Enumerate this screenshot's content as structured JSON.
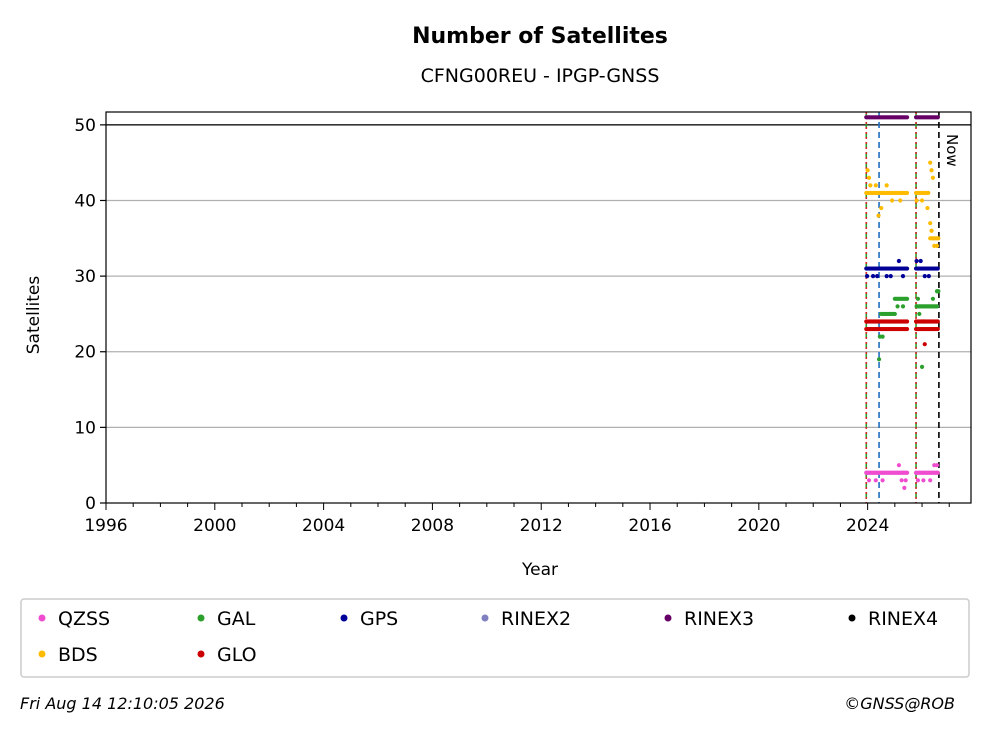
{
  "chart_data": {
    "type": "scatter",
    "title": "Number of Satellites",
    "subtitle": "CFNG00REU - IPGP-GNSS",
    "xlabel": "Year",
    "ylabel": "Satellites",
    "xlim": [
      1996,
      2027.8
    ],
    "ylim": [
      0,
      51.7
    ],
    "xticks": [
      1996,
      2000,
      2004,
      2008,
      2012,
      2016,
      2020,
      2024
    ],
    "xtick_labels": [
      "1996",
      "2000",
      "2004",
      "2008",
      "2012",
      "2016",
      "2020",
      "2024"
    ],
    "yticks": [
      0,
      10,
      20,
      30,
      40,
      50
    ],
    "ytick_labels": [
      "0",
      "10",
      "20",
      "30",
      "40",
      "50"
    ],
    "grid": "horizontal",
    "reference_lines": [
      {
        "x": 2023.95,
        "color": "#2ca02c",
        "style": "dashed"
      },
      {
        "x": 2023.95,
        "color": "#d62728",
        "style": "dotted"
      },
      {
        "x": 2024.42,
        "color": "#1f6fbf",
        "style": "dashed"
      },
      {
        "x": 2025.78,
        "color": "#2ca02c",
        "style": "dashed"
      },
      {
        "x": 2025.78,
        "color": "#d62728",
        "style": "dotted"
      },
      {
        "x": 2026.62,
        "color": "#000000",
        "style": "dashed",
        "label": "Now"
      }
    ],
    "series": [
      {
        "name": "QZSS",
        "color": "#f04cd0",
        "segments": [
          [
            2023.95,
            2025.45,
            4
          ],
          [
            2025.78,
            2026.62,
            4
          ]
        ],
        "outliers": [
          [
            2024.05,
            3
          ],
          [
            2024.3,
            3
          ],
          [
            2024.55,
            3
          ],
          [
            2025.15,
            5
          ],
          [
            2025.25,
            3
          ],
          [
            2025.35,
            2
          ],
          [
            2025.4,
            3
          ],
          [
            2025.85,
            3
          ],
          [
            2026.05,
            3
          ],
          [
            2026.3,
            3
          ],
          [
            2026.45,
            5
          ],
          [
            2026.55,
            5
          ]
        ]
      },
      {
        "name": "GAL",
        "color": "#2ca02c",
        "segments": [
          [
            2024.5,
            2025.0,
            25
          ],
          [
            2025.0,
            2025.45,
            27
          ],
          [
            2025.8,
            2026.55,
            26
          ]
        ],
        "outliers": [
          [
            2024.45,
            22
          ],
          [
            2024.55,
            22
          ],
          [
            2024.42,
            19
          ],
          [
            2025.1,
            26
          ],
          [
            2025.3,
            26
          ],
          [
            2025.85,
            27
          ],
          [
            2025.9,
            25
          ],
          [
            2026.0,
            18
          ],
          [
            2026.4,
            27
          ],
          [
            2026.55,
            28
          ],
          [
            2026.6,
            28
          ]
        ]
      },
      {
        "name": "GPS",
        "color": "#000099",
        "segments": [
          [
            2023.95,
            2025.45,
            31
          ],
          [
            2025.78,
            2026.62,
            31
          ]
        ],
        "outliers": [
          [
            2023.98,
            30
          ],
          [
            2024.2,
            30
          ],
          [
            2024.35,
            30
          ],
          [
            2024.7,
            30
          ],
          [
            2024.85,
            30
          ],
          [
            2025.15,
            32
          ],
          [
            2025.3,
            30
          ],
          [
            2025.8,
            32
          ],
          [
            2025.95,
            32
          ],
          [
            2026.1,
            30
          ],
          [
            2026.25,
            30
          ]
        ]
      },
      {
        "name": "RINEX2",
        "color": "#8080c0",
        "segments": [],
        "outliers": []
      },
      {
        "name": "RINEX3",
        "color": "#660066",
        "segments": [
          [
            2023.95,
            2025.45,
            51
          ],
          [
            2025.78,
            2026.62,
            51
          ]
        ],
        "outliers": []
      },
      {
        "name": "RINEX4",
        "color": "#000000",
        "segments": [],
        "outliers": []
      },
      {
        "name": "BDS",
        "color": "#ffbb00",
        "segments": [
          [
            2023.95,
            2025.45,
            41
          ],
          [
            2025.78,
            2026.25,
            41
          ],
          [
            2026.3,
            2026.62,
            35
          ]
        ],
        "outliers": [
          [
            2024.0,
            44
          ],
          [
            2024.05,
            43
          ],
          [
            2024.1,
            42
          ],
          [
            2024.3,
            42
          ],
          [
            2024.4,
            38
          ],
          [
            2024.5,
            39
          ],
          [
            2024.7,
            42
          ],
          [
            2024.9,
            40
          ],
          [
            2025.2,
            40
          ],
          [
            2025.8,
            40
          ],
          [
            2026.0,
            40
          ],
          [
            2026.2,
            39
          ],
          [
            2026.3,
            45
          ],
          [
            2026.35,
            44
          ],
          [
            2026.4,
            43
          ],
          [
            2026.3,
            37
          ],
          [
            2026.35,
            36
          ],
          [
            2026.45,
            34
          ],
          [
            2026.55,
            34
          ]
        ]
      },
      {
        "name": "GLO",
        "color": "#cc0000",
        "segments": [
          [
            2023.95,
            2025.45,
            24
          ],
          [
            2023.95,
            2025.45,
            23
          ],
          [
            2025.78,
            2026.62,
            24
          ],
          [
            2025.78,
            2026.62,
            23
          ]
        ],
        "outliers": [
          [
            2026.1,
            21
          ],
          [
            2026.05,
            24
          ]
        ]
      }
    ]
  },
  "legend": {
    "position": "bottom",
    "columns": 6,
    "entries": [
      "QZSS",
      "GAL",
      "GPS",
      "RINEX2",
      "RINEX3",
      "RINEX4",
      "BDS",
      "GLO"
    ]
  },
  "footer": {
    "timestamp": "Fri Aug 14 12:10:05 2026",
    "credit": "©GNSS@ROB"
  }
}
